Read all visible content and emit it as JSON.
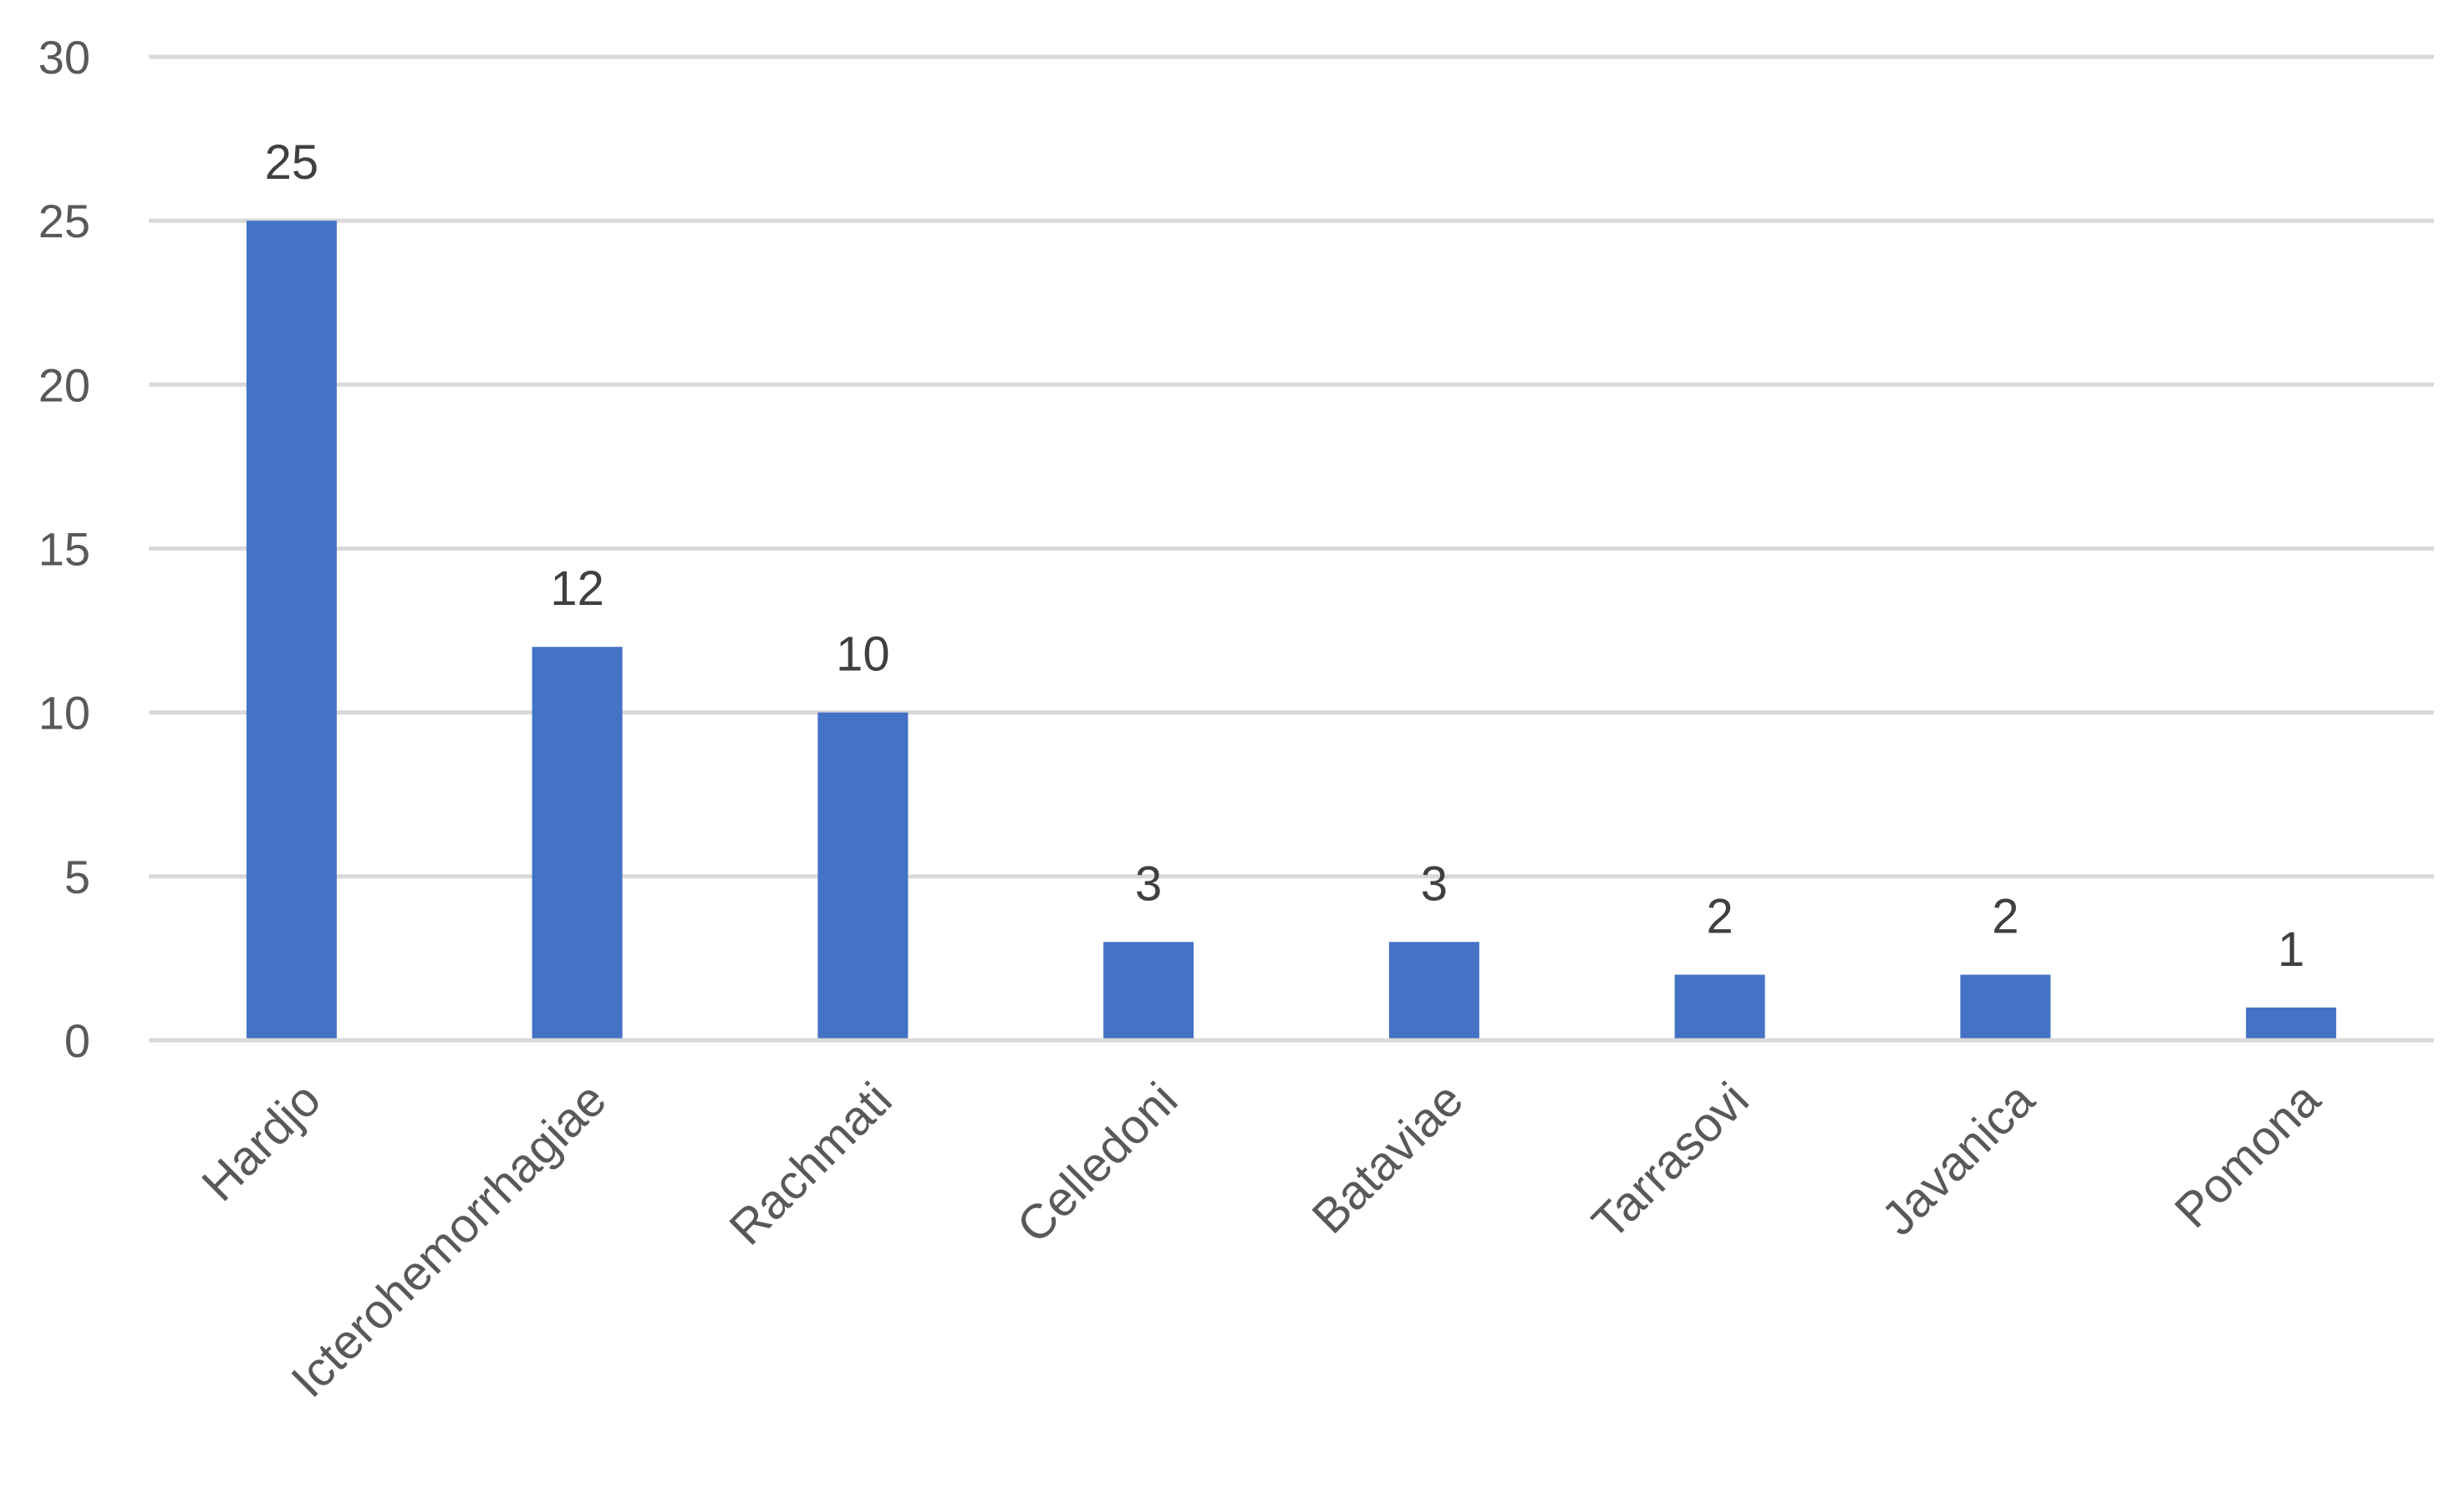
{
  "chart_data": {
    "type": "bar",
    "title": "",
    "xlabel": "",
    "ylabel": "",
    "categories": [
      "Hardjo",
      "Icterohemorrhagiae",
      "Rachmati",
      "Celledoni",
      "Bataviae",
      "Tarrasovi",
      "Javanica",
      "Pomona"
    ],
    "values": [
      25,
      12,
      10,
      3,
      3,
      2,
      2,
      1
    ],
    "ylim": [
      0,
      30
    ],
    "yticks": [
      0,
      5,
      10,
      15,
      20,
      25,
      30
    ],
    "grid": true,
    "legend": "none",
    "data_labels": true,
    "bar_color": "#4472c4",
    "grid_color": "#d9d9d9"
  }
}
